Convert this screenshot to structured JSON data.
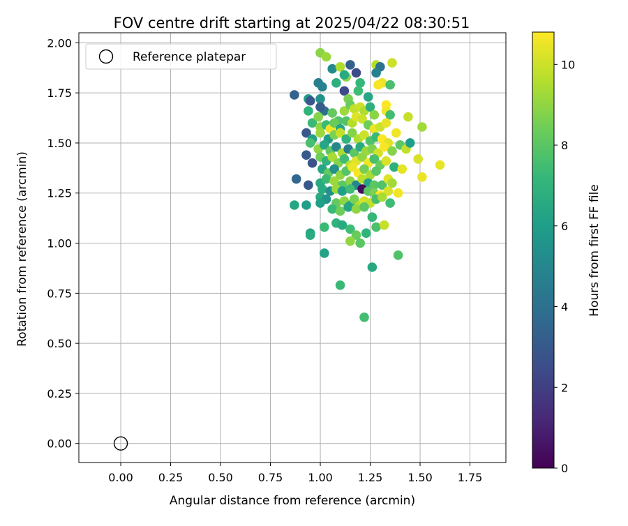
{
  "chart_data": {
    "type": "scatter",
    "title": "FOV centre drift starting at 2025/04/22 08:30:51",
    "xlabel": "Angular distance from reference (arcmin)",
    "ylabel": "Rotation from reference (arcmin)",
    "xlim": [
      -0.21,
      1.93
    ],
    "ylim": [
      -0.095,
      2.05
    ],
    "x_ticks": [
      0.0,
      0.25,
      0.5,
      0.75,
      1.0,
      1.25,
      1.5,
      1.75
    ],
    "x_tick_labels": [
      "0.00",
      "0.25",
      "0.50",
      "0.75",
      "1.00",
      "1.25",
      "1.50",
      "1.75"
    ],
    "y_ticks": [
      0.0,
      0.25,
      0.5,
      0.75,
      1.0,
      1.25,
      1.5,
      1.75,
      2.0
    ],
    "y_tick_labels": [
      "0.00",
      "0.25",
      "0.50",
      "0.75",
      "1.00",
      "1.25",
      "1.50",
      "1.75",
      "2.00"
    ],
    "grid": true,
    "legend": {
      "placement": "top-left",
      "entries": [
        {
          "label": "Reference platepar",
          "marker": "open-circle",
          "x": 0.0,
          "y": 0.0
        }
      ]
    },
    "colorbar": {
      "label": "Hours from first FF file",
      "colormap": "viridis",
      "range": [
        0,
        10.8
      ],
      "ticks": [
        0,
        2,
        4,
        6,
        8,
        10
      ],
      "tick_labels": [
        "0",
        "2",
        "4",
        "6",
        "8",
        "10"
      ]
    },
    "series": [
      {
        "marker": "filled-circle",
        "columns": [
          "x",
          "y",
          "hours"
        ],
        "points": [
          [
            1.0,
            1.95,
            8.9
          ],
          [
            1.03,
            1.93,
            9.2
          ],
          [
            1.06,
            1.87,
            5.2
          ],
          [
            1.1,
            1.88,
            9.5
          ],
          [
            1.13,
            1.83,
            9.0
          ],
          [
            1.15,
            1.89,
            3.3
          ],
          [
            1.18,
            1.85,
            2.5
          ],
          [
            1.12,
            1.84,
            6.6
          ],
          [
            1.2,
            1.8,
            7.2
          ],
          [
            1.28,
            1.89,
            9.6
          ],
          [
            1.3,
            1.88,
            4.0
          ],
          [
            1.36,
            1.9,
            10.0
          ],
          [
            1.28,
            1.85,
            4.8
          ],
          [
            1.31,
            1.8,
            10.5
          ],
          [
            1.29,
            1.79,
            10.7
          ],
          [
            1.35,
            1.79,
            7.6
          ],
          [
            0.87,
            1.74,
            3.4
          ],
          [
            0.99,
            1.8,
            4.6
          ],
          [
            1.01,
            1.78,
            4.8
          ],
          [
            1.08,
            1.8,
            6.8
          ],
          [
            1.12,
            1.76,
            2.5
          ],
          [
            1.14,
            1.72,
            8.6
          ],
          [
            1.19,
            1.76,
            7.4
          ],
          [
            1.24,
            1.73,
            6.4
          ],
          [
            0.94,
            1.72,
            6.0
          ],
          [
            0.95,
            1.71,
            2.9
          ],
          [
            1.0,
            1.72,
            5.5
          ],
          [
            1.02,
            1.66,
            4.0
          ],
          [
            1.0,
            1.68,
            3.2
          ],
          [
            0.94,
            1.66,
            7.0
          ],
          [
            1.06,
            1.65,
            8.2
          ],
          [
            1.09,
            1.61,
            7.8
          ],
          [
            1.12,
            1.66,
            9.2
          ],
          [
            1.15,
            1.69,
            8.3
          ],
          [
            1.17,
            1.67,
            9.8
          ],
          [
            1.2,
            1.68,
            10.0
          ],
          [
            1.22,
            1.66,
            9.5
          ],
          [
            1.25,
            1.68,
            6.8
          ],
          [
            1.27,
            1.64,
            8.9
          ],
          [
            1.33,
            1.69,
            10.8
          ],
          [
            1.33,
            1.66,
            10.6
          ],
          [
            1.35,
            1.64,
            7.5
          ],
          [
            1.44,
            1.63,
            9.9
          ],
          [
            0.96,
            1.6,
            7.3
          ],
          [
            0.99,
            1.63,
            8.8
          ],
          [
            1.0,
            1.58,
            9.0
          ],
          [
            1.03,
            1.59,
            7.3
          ],
          [
            1.05,
            1.57,
            10.6
          ],
          [
            1.07,
            1.6,
            8.3
          ],
          [
            1.1,
            1.57,
            6.4
          ],
          [
            1.13,
            1.61,
            7.8
          ],
          [
            1.16,
            1.6,
            9.6
          ],
          [
            1.18,
            1.63,
            10.3
          ],
          [
            1.21,
            1.62,
            10.0
          ],
          [
            1.24,
            1.59,
            8.4
          ],
          [
            1.27,
            1.57,
            10.5
          ],
          [
            1.3,
            1.58,
            10.0
          ],
          [
            1.33,
            1.6,
            10.4
          ],
          [
            1.51,
            1.58,
            9.3
          ],
          [
            0.93,
            1.55,
            2.9
          ],
          [
            0.96,
            1.52,
            6.2
          ],
          [
            1.0,
            1.55,
            9.2
          ],
          [
            1.04,
            1.52,
            5.9
          ],
          [
            1.07,
            1.54,
            8.6
          ],
          [
            1.1,
            1.55,
            9.9
          ],
          [
            1.13,
            1.52,
            7.0
          ],
          [
            1.16,
            1.55,
            8.8
          ],
          [
            1.19,
            1.52,
            9.5
          ],
          [
            1.22,
            1.54,
            10.0
          ],
          [
            1.25,
            1.51,
            7.8
          ],
          [
            1.28,
            1.53,
            7.3
          ],
          [
            1.31,
            1.52,
            10.8
          ],
          [
            1.34,
            1.5,
            10.3
          ],
          [
            1.38,
            1.55,
            10.6
          ],
          [
            0.95,
            1.5,
            7.6
          ],
          [
            0.99,
            1.47,
            9.0
          ],
          [
            1.02,
            1.49,
            6.4
          ],
          [
            1.05,
            1.46,
            8.1
          ],
          [
            1.08,
            1.48,
            5.0
          ],
          [
            1.11,
            1.45,
            9.4
          ],
          [
            1.14,
            1.47,
            4.5
          ],
          [
            1.17,
            1.45,
            8.0
          ],
          [
            1.2,
            1.48,
            6.6
          ],
          [
            1.23,
            1.46,
            9.2
          ],
          [
            1.26,
            1.47,
            8.7
          ],
          [
            1.29,
            1.45,
            10.1
          ],
          [
            1.32,
            1.48,
            10.7
          ],
          [
            1.36,
            1.46,
            8.8
          ],
          [
            1.4,
            1.49,
            8.0
          ],
          [
            1.43,
            1.47,
            9.8
          ],
          [
            1.45,
            1.5,
            6.0
          ],
          [
            0.93,
            1.44,
            3.0
          ],
          [
            0.96,
            1.4,
            2.8
          ],
          [
            1.0,
            1.43,
            8.4
          ],
          [
            1.03,
            1.41,
            6.9
          ],
          [
            1.06,
            1.43,
            9.4
          ],
          [
            1.09,
            1.4,
            8.8
          ],
          [
            1.12,
            1.42,
            7.4
          ],
          [
            1.15,
            1.39,
            9.6
          ],
          [
            1.18,
            1.41,
            10.3
          ],
          [
            1.21,
            1.43,
            9.0
          ],
          [
            1.24,
            1.4,
            10.6
          ],
          [
            1.27,
            1.42,
            7.6
          ],
          [
            1.3,
            1.39,
            8.3
          ],
          [
            1.33,
            1.41,
            10.2
          ],
          [
            1.37,
            1.38,
            6.8
          ],
          [
            1.41,
            1.37,
            10.4
          ],
          [
            1.49,
            1.42,
            10.2
          ],
          [
            1.6,
            1.39,
            10.4
          ],
          [
            1.01,
            1.37,
            6.4
          ],
          [
            1.04,
            1.35,
            8.2
          ],
          [
            1.07,
            1.37,
            5.4
          ],
          [
            1.1,
            1.34,
            9.0
          ],
          [
            1.13,
            1.36,
            7.9
          ],
          [
            1.16,
            1.38,
            10.5
          ],
          [
            1.19,
            1.35,
            10.7
          ],
          [
            1.22,
            1.37,
            8.5
          ],
          [
            1.25,
            1.34,
            9.4
          ],
          [
            1.28,
            1.36,
            8.0
          ],
          [
            0.88,
            1.32,
            3.6
          ],
          [
            0.94,
            1.29,
            3.0
          ],
          [
            1.0,
            1.3,
            6.6
          ],
          [
            1.03,
            1.32,
            7.3
          ],
          [
            1.07,
            1.31,
            9.2
          ],
          [
            1.11,
            1.29,
            8.0
          ],
          [
            1.15,
            1.31,
            8.9
          ],
          [
            1.18,
            1.29,
            5.0
          ],
          [
            1.21,
            1.32,
            9.7
          ],
          [
            1.24,
            1.3,
            6.3
          ],
          [
            1.27,
            1.29,
            8.0
          ],
          [
            1.31,
            1.29,
            7.8
          ],
          [
            1.34,
            1.32,
            10.3
          ],
          [
            1.36,
            1.3,
            9.3
          ],
          [
            1.51,
            1.33,
            10.5
          ],
          [
            1.01,
            1.27,
            6.6
          ],
          [
            1.05,
            1.26,
            5.4
          ],
          [
            1.08,
            1.27,
            9.2
          ],
          [
            1.11,
            1.26,
            6.1
          ],
          [
            1.15,
            1.27,
            7.4
          ],
          [
            1.21,
            1.27,
            0.3
          ],
          [
            1.24,
            1.26,
            8.0
          ],
          [
            1.27,
            1.25,
            8.6
          ],
          [
            1.3,
            1.24,
            10.8
          ],
          [
            1.34,
            1.26,
            10.2
          ],
          [
            1.39,
            1.25,
            10.6
          ],
          [
            1.0,
            1.23,
            6.6
          ],
          [
            1.03,
            1.22,
            5.6
          ],
          [
            1.08,
            1.2,
            8.2
          ],
          [
            1.12,
            1.21,
            9.0
          ],
          [
            1.15,
            1.19,
            7.0
          ],
          [
            1.17,
            1.22,
            8.6
          ],
          [
            1.2,
            1.19,
            9.7
          ],
          [
            1.22,
            1.21,
            10.1
          ],
          [
            1.25,
            1.2,
            9.8
          ],
          [
            1.28,
            1.22,
            7.6
          ],
          [
            1.31,
            1.23,
            9.4
          ],
          [
            1.35,
            1.2,
            7.4
          ],
          [
            0.87,
            1.19,
            6.4
          ],
          [
            0.93,
            1.19,
            6.0
          ],
          [
            1.0,
            1.2,
            6.1
          ],
          [
            1.06,
            1.17,
            7.3
          ],
          [
            1.1,
            1.16,
            8.4
          ],
          [
            1.14,
            1.18,
            6.3
          ],
          [
            1.18,
            1.17,
            9.0
          ],
          [
            1.22,
            1.18,
            8.0
          ],
          [
            1.26,
            1.13,
            7.2
          ],
          [
            1.08,
            1.1,
            7.0
          ],
          [
            1.11,
            1.09,
            6.6
          ],
          [
            1.15,
            1.07,
            7.4
          ],
          [
            1.18,
            1.04,
            8.3
          ],
          [
            1.2,
            1.0,
            8.0
          ],
          [
            1.15,
            1.01,
            9.0
          ],
          [
            1.02,
            1.08,
            7.3
          ],
          [
            0.95,
            1.05,
            6.4
          ],
          [
            0.95,
            1.04,
            6.6
          ],
          [
            1.23,
            1.05,
            7.0
          ],
          [
            1.28,
            1.08,
            7.7
          ],
          [
            1.32,
            1.09,
            9.9
          ],
          [
            1.02,
            0.95,
            6.2
          ],
          [
            1.39,
            0.94,
            7.8
          ],
          [
            1.26,
            0.88,
            6.5
          ],
          [
            1.1,
            0.79,
            7.3
          ],
          [
            1.22,
            0.63,
            7.5
          ]
        ]
      }
    ]
  }
}
